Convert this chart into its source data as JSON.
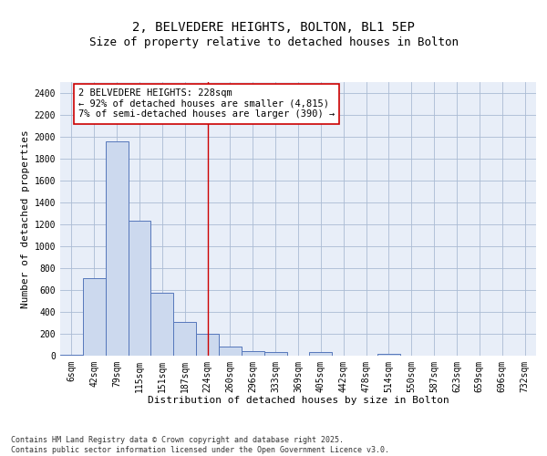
{
  "title_line1": "2, BELVEDERE HEIGHTS, BOLTON, BL1 5EP",
  "title_line2": "Size of property relative to detached houses in Bolton",
  "xlabel": "Distribution of detached houses by size in Bolton",
  "ylabel": "Number of detached properties",
  "bar_labels": [
    "6sqm",
    "42sqm",
    "79sqm",
    "115sqm",
    "151sqm",
    "187sqm",
    "224sqm",
    "260sqm",
    "296sqm",
    "333sqm",
    "369sqm",
    "405sqm",
    "442sqm",
    "478sqm",
    "514sqm",
    "550sqm",
    "587sqm",
    "623sqm",
    "659sqm",
    "696sqm",
    "732sqm"
  ],
  "bar_values": [
    10,
    710,
    1960,
    1235,
    575,
    305,
    200,
    85,
    45,
    30,
    0,
    30,
    0,
    0,
    15,
    0,
    0,
    0,
    0,
    0,
    0
  ],
  "bar_color": "#ccd9ee",
  "bar_edge_color": "#5577bb",
  "vline_x": 6,
  "vline_color": "#cc0000",
  "annotation_text": "2 BELVEDERE HEIGHTS: 228sqm\n← 92% of detached houses are smaller (4,815)\n7% of semi-detached houses are larger (390) →",
  "annotation_box_color": "#ffffff",
  "annotation_box_edge": "#cc0000",
  "annotation_fontsize": 7.5,
  "ylim": [
    0,
    2500
  ],
  "yticks": [
    0,
    200,
    400,
    600,
    800,
    1000,
    1200,
    1400,
    1600,
    1800,
    2000,
    2200,
    2400
  ],
  "grid_color": "#aabbd4",
  "bg_color": "#e8eef8",
  "footnote": "Contains HM Land Registry data © Crown copyright and database right 2025.\nContains public sector information licensed under the Open Government Licence v3.0.",
  "title_fontsize": 10,
  "subtitle_fontsize": 9,
  "axis_label_fontsize": 8,
  "tick_fontsize": 7
}
